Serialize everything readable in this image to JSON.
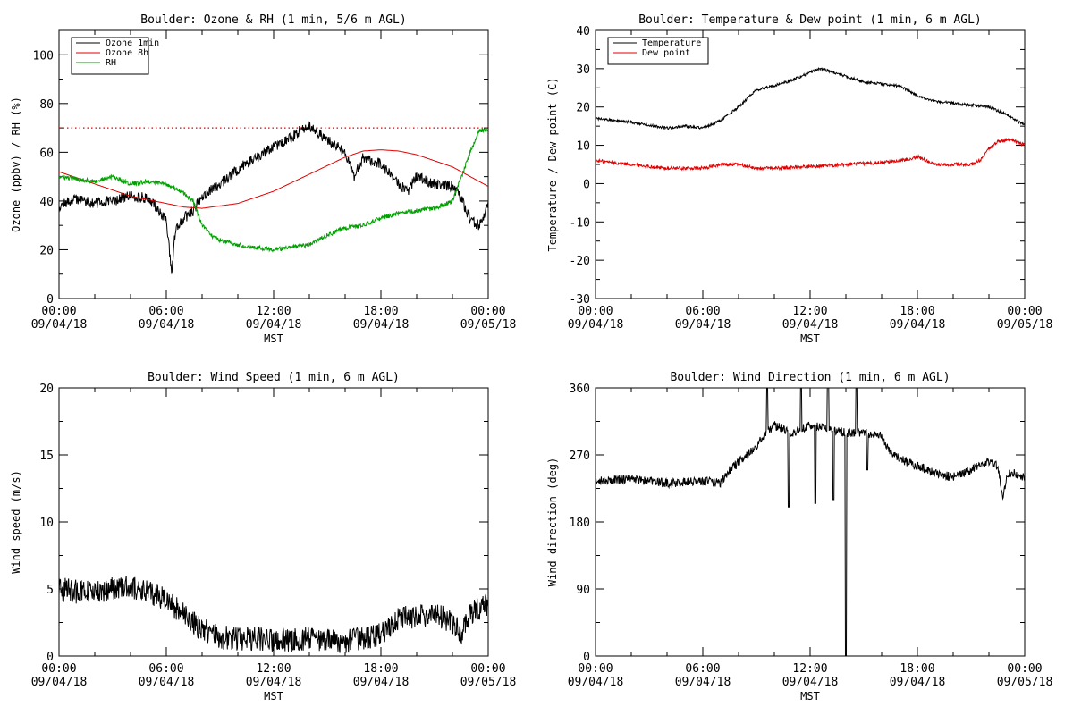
{
  "chart_data": [
    {
      "id": "ozone",
      "type": "line",
      "title": "Boulder: Ozone & RH (1 min, 5/6 m AGL)",
      "xlabel": "MST",
      "ylabel": "Ozone (ppbv) / RH (%)",
      "xlim": [
        0,
        24
      ],
      "ylim": [
        0,
        110
      ],
      "yticks": [
        0,
        20,
        40,
        60,
        80,
        100
      ],
      "xticks": [
        {
          "x": 0,
          "t1": "00:00",
          "t2": "09/04/18"
        },
        {
          "x": 6,
          "t1": "06:00",
          "t2": "09/04/18"
        },
        {
          "x": 12,
          "t1": "12:00",
          "t2": "09/04/18"
        },
        {
          "x": 18,
          "t1": "18:00",
          "t2": "09/04/18"
        },
        {
          "x": 24,
          "t1": "00:00",
          "t2": "09/05/18"
        }
      ],
      "legend": "top-left",
      "reference_line": {
        "y": 70,
        "color": "#e00000",
        "style": "dotted"
      },
      "series": [
        {
          "name": "Ozone 1min",
          "color": "#000000",
          "noise": 2.2,
          "seed": 11,
          "x": [
            0,
            1,
            2,
            3,
            4,
            5,
            5.5,
            6,
            6.3,
            6.5,
            7,
            7.5,
            8,
            9,
            10,
            11,
            12,
            13,
            13.5,
            14,
            15,
            16,
            16.5,
            17,
            18,
            19,
            19.5,
            20,
            21,
            22,
            22.5,
            23,
            23.5,
            24
          ],
          "y": [
            38,
            41,
            39,
            40,
            42,
            41,
            37,
            32,
            10,
            28,
            33,
            36,
            42,
            47,
            53,
            58,
            62,
            66,
            69,
            71,
            65,
            60,
            50,
            58,
            55,
            47,
            44,
            50,
            47,
            46,
            41,
            32,
            30,
            38
          ]
        },
        {
          "name": "Ozone 8h",
          "color": "#e00000",
          "noise": 0,
          "seed": 0,
          "x": [
            0,
            2,
            4,
            6,
            7,
            8,
            10,
            12,
            14,
            16,
            17,
            18,
            19,
            20,
            22,
            24
          ],
          "y": [
            52,
            47,
            42,
            39,
            37.5,
            37,
            39,
            44,
            51,
            58,
            60.5,
            61,
            60.5,
            59,
            54,
            46
          ]
        },
        {
          "name": "RH",
          "color": "#00a000",
          "noise": 0.9,
          "seed": 23,
          "x": [
            0,
            1,
            2,
            3,
            4,
            5,
            6,
            7,
            7.5,
            8,
            8.5,
            9,
            10,
            11,
            12,
            13,
            14,
            15,
            16,
            17,
            18,
            19,
            20,
            21,
            22,
            22.5,
            23,
            23.5,
            24
          ],
          "y": [
            50,
            49,
            48,
            50,
            47,
            48,
            47,
            43,
            40,
            30,
            26,
            24,
            22,
            21,
            20,
            21,
            22,
            26,
            29,
            30,
            33,
            35,
            36,
            37,
            40,
            50,
            60,
            69,
            69
          ]
        }
      ]
    },
    {
      "id": "temp",
      "type": "line",
      "title": "Boulder: Temperature & Dew point (1 min, 6 m AGL)",
      "xlabel": "MST",
      "ylabel": "Temperature / Dew point (C)",
      "xlim": [
        0,
        24
      ],
      "ylim": [
        -30,
        40
      ],
      "yticks": [
        -30,
        -20,
        -10,
        0,
        10,
        20,
        30,
        40
      ],
      "xticks": [
        {
          "x": 0,
          "t1": "00:00",
          "t2": "09/04/18"
        },
        {
          "x": 6,
          "t1": "06:00",
          "t2": "09/04/18"
        },
        {
          "x": 12,
          "t1": "12:00",
          "t2": "09/04/18"
        },
        {
          "x": 18,
          "t1": "18:00",
          "t2": "09/04/18"
        },
        {
          "x": 24,
          "t1": "00:00",
          "t2": "09/05/18"
        }
      ],
      "legend": "top-left",
      "series": [
        {
          "name": "Temperature",
          "color": "#000000",
          "noise": 0.35,
          "seed": 31,
          "x": [
            0,
            2,
            4,
            5,
            6,
            7,
            8,
            9,
            10,
            11,
            12,
            12.5,
            13,
            14,
            15,
            16,
            17,
            18,
            19,
            20,
            21,
            22,
            23,
            23.5,
            24
          ],
          "y": [
            17,
            16,
            14.5,
            15,
            14.5,
            16.5,
            20,
            24.5,
            25.5,
            27,
            29,
            30,
            29.5,
            28,
            26.5,
            26,
            25.5,
            23,
            21.5,
            21,
            20.5,
            20,
            18,
            16.5,
            15.5
          ]
        },
        {
          "name": "Dew point",
          "color": "#e00000",
          "noise": 0.45,
          "seed": 47,
          "x": [
            0,
            2,
            4,
            6,
            7,
            8,
            9,
            10,
            12,
            14,
            16,
            17,
            18,
            19,
            20,
            21,
            21.5,
            22,
            22.5,
            23,
            23.5,
            24
          ],
          "y": [
            6,
            5,
            4,
            4,
            5,
            5,
            4,
            4,
            4.5,
            5,
            5.5,
            6,
            7,
            5,
            5,
            5,
            6,
            9,
            11,
            11.5,
            11,
            10
          ]
        }
      ]
    },
    {
      "id": "wspd",
      "type": "line",
      "title": "Boulder: Wind Speed (1 min, 6 m AGL)",
      "xlabel": "MST",
      "ylabel": "Wind speed (m/s)",
      "xlim": [
        0,
        24
      ],
      "ylim": [
        0,
        20
      ],
      "yticks": [
        0,
        5,
        10,
        15,
        20
      ],
      "xticks": [
        {
          "x": 0,
          "t1": "00:00",
          "t2": "09/04/18"
        },
        {
          "x": 6,
          "t1": "06:00",
          "t2": "09/04/18"
        },
        {
          "x": 12,
          "t1": "12:00",
          "t2": "09/04/18"
        },
        {
          "x": 18,
          "t1": "18:00",
          "t2": "09/04/18"
        },
        {
          "x": 24,
          "t1": "00:00",
          "t2": "09/05/18"
        }
      ],
      "series": [
        {
          "name": "",
          "color": "#000000",
          "noise": 0.9,
          "seed": 59,
          "x": [
            0,
            1,
            2,
            3,
            4,
            5,
            6,
            7,
            8,
            9,
            10,
            11,
            12,
            13,
            14,
            15,
            16,
            17,
            18,
            19,
            20,
            21,
            22,
            22.5,
            23,
            24
          ],
          "y": [
            5,
            4.8,
            4.7,
            5.0,
            5.2,
            4.8,
            4.2,
            3.0,
            2.0,
            1.4,
            1.3,
            1.3,
            1.2,
            1.2,
            1.3,
            1.2,
            1.1,
            1.3,
            1.6,
            2.8,
            3.0,
            3.2,
            2.5,
            1.8,
            3.2,
            3.8
          ]
        }
      ]
    },
    {
      "id": "wdir",
      "type": "line",
      "title": "Boulder: Wind Direction (1 min, 6 m AGL)",
      "xlabel": "MST",
      "ylabel": "Wind direction (deg)",
      "xlim": [
        0,
        24
      ],
      "ylim": [
        0,
        360
      ],
      "yticks": [
        0,
        90,
        180,
        270,
        360
      ],
      "xticks": [
        {
          "x": 0,
          "t1": "00:00",
          "t2": "09/04/18"
        },
        {
          "x": 6,
          "t1": "06:00",
          "t2": "09/04/18"
        },
        {
          "x": 12,
          "t1": "12:00",
          "t2": "09/04/18"
        },
        {
          "x": 18,
          "t1": "18:00",
          "t2": "09/04/18"
        },
        {
          "x": 24,
          "t1": "00:00",
          "t2": "09/05/18"
        }
      ],
      "series": [
        {
          "name": "",
          "color": "#000000",
          "noise": 6,
          "seed": 71,
          "x": [
            0,
            2,
            4,
            6,
            7,
            7.5,
            8,
            8.5,
            9,
            9.5,
            10,
            11,
            12,
            13,
            14,
            15,
            16,
            16.5,
            17,
            18,
            19,
            20,
            21,
            22,
            22.5,
            22.8,
            23,
            23.5,
            24
          ],
          "y": [
            235,
            238,
            232,
            235,
            232,
            250,
            260,
            270,
            280,
            300,
            310,
            300,
            310,
            305,
            300,
            300,
            295,
            275,
            265,
            255,
            245,
            240,
            250,
            262,
            255,
            210,
            245,
            245,
            240
          ],
          "spikes": [
            {
              "x": 9.6,
              "y": 360
            },
            {
              "x": 10.8,
              "y": 200
            },
            {
              "x": 11.5,
              "y": 360
            },
            {
              "x": 12.3,
              "y": 205
            },
            {
              "x": 13.0,
              "y": 360
            },
            {
              "x": 13.3,
              "y": 210
            },
            {
              "x": 14.0,
              "y": 0
            },
            {
              "x": 14.6,
              "y": 360
            },
            {
              "x": 15.2,
              "y": 250
            }
          ]
        }
      ]
    }
  ]
}
